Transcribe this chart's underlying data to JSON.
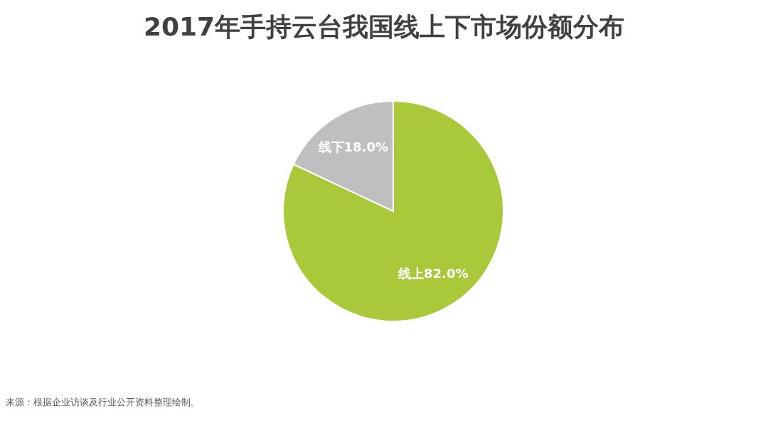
{
  "chart_data": {
    "type": "pie",
    "title": "2017年手持云台我国线上下市场份额分布",
    "categories": [
      "线上",
      "线下"
    ],
    "values": [
      82.0,
      18.0
    ],
    "value_labels": [
      "82.0%",
      "18.0%"
    ],
    "colors": [
      "#a9c93a",
      "#bfbfbf"
    ],
    "annotations": [
      "来源：根据企业访谈及行业公开资料整理绘制。"
    ]
  }
}
